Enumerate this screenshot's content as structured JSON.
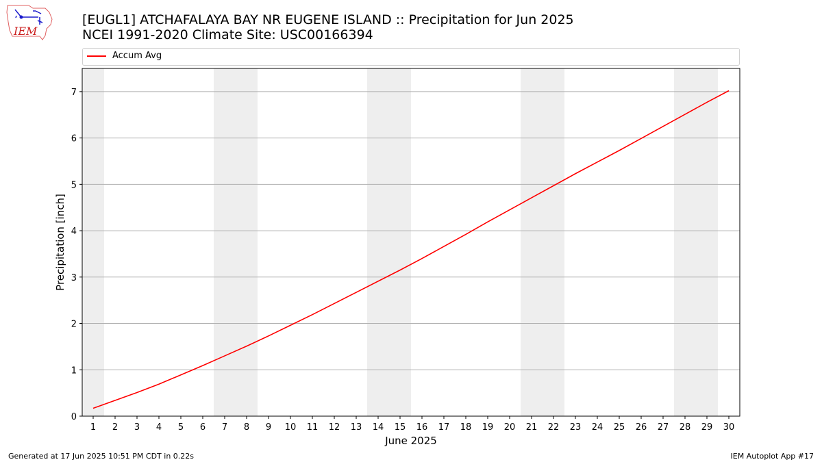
{
  "header": {
    "title_line1": "[EUGL1] ATCHAFALAYA BAY NR EUGENE ISLAND :: Precipitation for Jun 2025",
    "title_line2": "NCEI 1991-2020 Climate Site: USC00166394",
    "logo_text": "IEM"
  },
  "legend": {
    "entries": [
      "Accum Avg"
    ]
  },
  "footer": {
    "left": "Generated at 17 Jun 2025 10:51 PM CDT in 0.22s",
    "right": "IEM Autoplot App #17"
  },
  "colors": {
    "series": "#ff0000",
    "weekend_band": "#eeeeee",
    "grid": "#b0b0b0"
  },
  "chart_data": {
    "type": "line",
    "xlabel": "June 2025",
    "ylabel": "Precipitation [inch]",
    "x": [
      1,
      2,
      3,
      4,
      5,
      6,
      7,
      8,
      9,
      10,
      11,
      12,
      13,
      14,
      15,
      16,
      17,
      18,
      19,
      20,
      21,
      22,
      23,
      24,
      25,
      26,
      27,
      28,
      29,
      30
    ],
    "xlim": [
      0.5,
      30.5
    ],
    "ylim": [
      0,
      7.5
    ],
    "yticks": [
      0,
      1,
      2,
      3,
      4,
      5,
      6,
      7
    ],
    "grid": "y",
    "legend_position": "top",
    "shaded_days": [
      1,
      7,
      8,
      14,
      15,
      21,
      22,
      28,
      29
    ],
    "series": [
      {
        "name": "Accum Avg",
        "values": [
          0.17,
          0.34,
          0.51,
          0.69,
          0.89,
          1.09,
          1.3,
          1.51,
          1.73,
          1.96,
          2.19,
          2.43,
          2.67,
          2.91,
          3.15,
          3.4,
          3.66,
          3.92,
          4.19,
          4.45,
          4.71,
          4.97,
          5.23,
          5.48,
          5.73,
          5.99,
          6.25,
          6.51,
          6.77,
          7.02
        ]
      }
    ]
  }
}
